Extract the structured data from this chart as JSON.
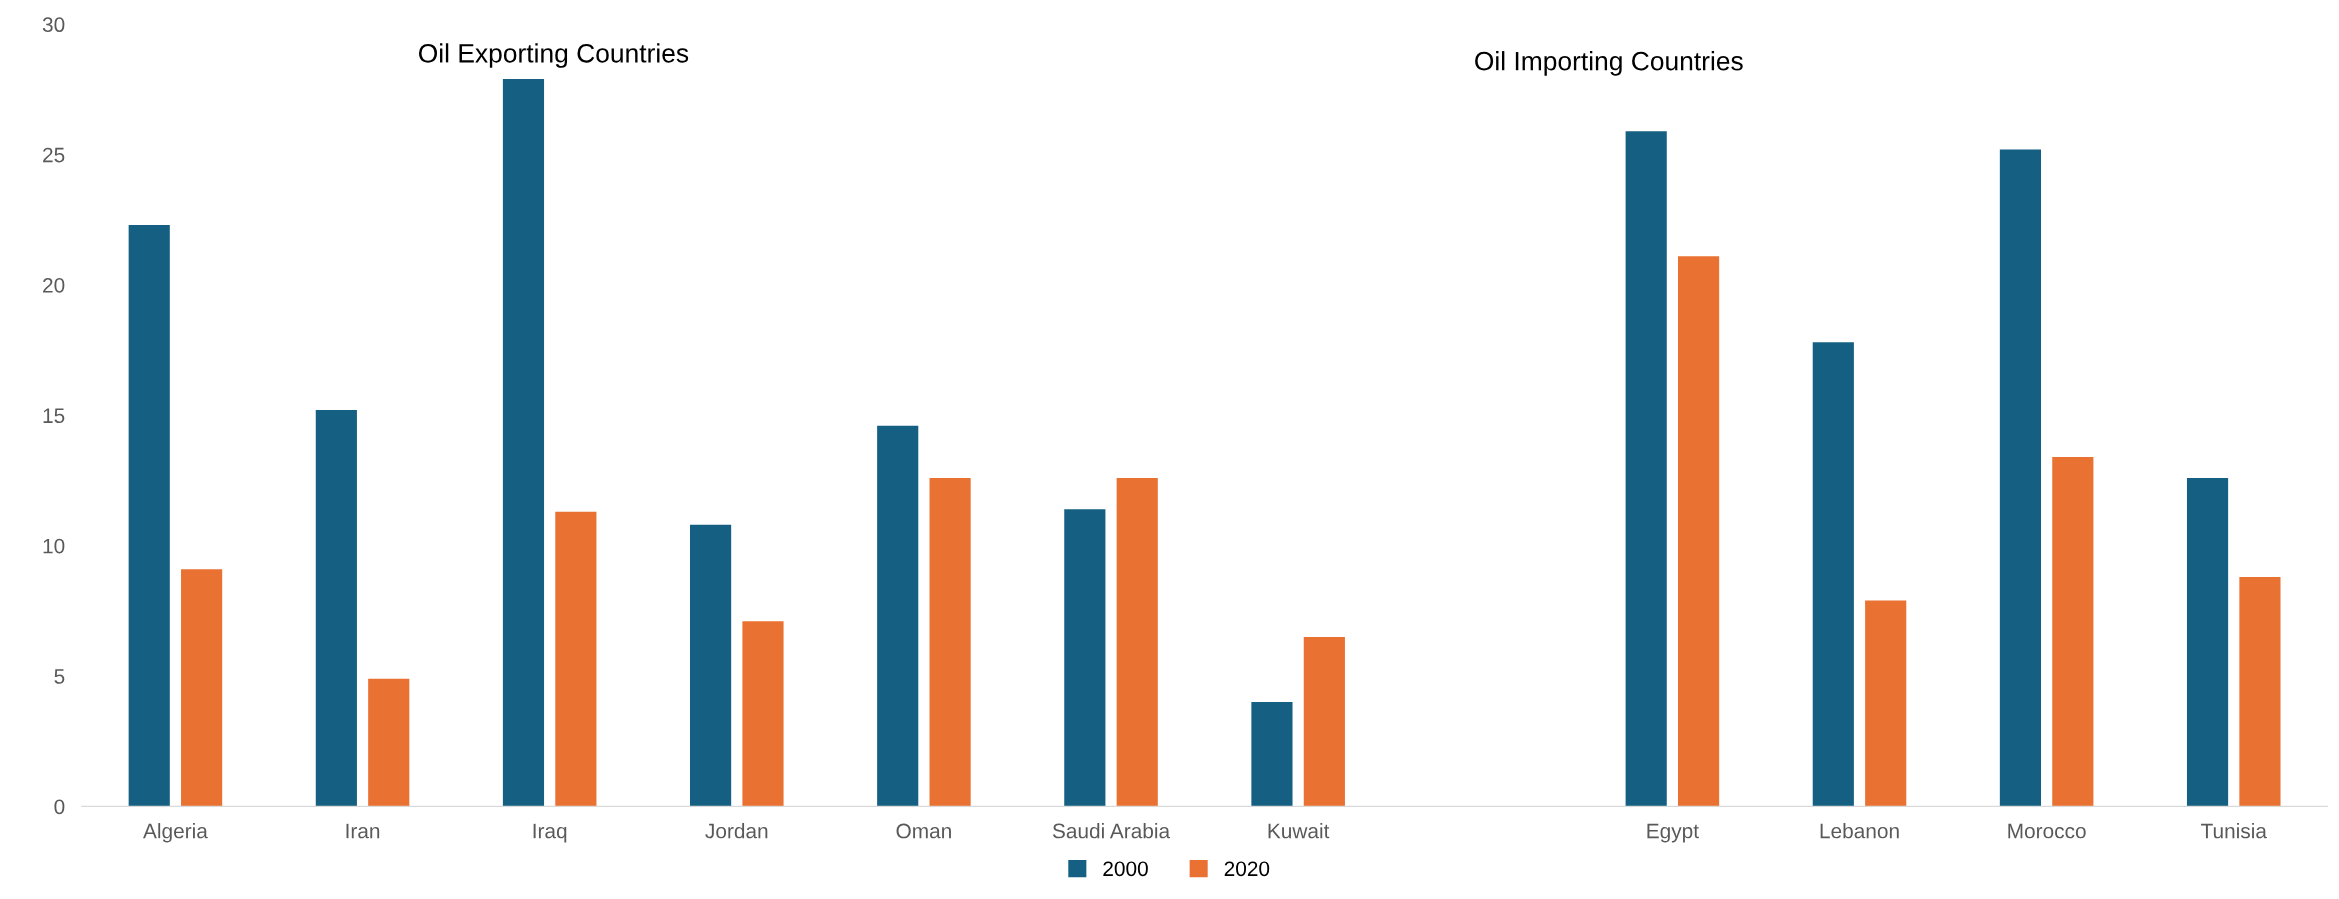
{
  "chart_data": {
    "type": "bar",
    "categories": [
      "Algeria",
      "Iran",
      "Iraq",
      "Jordan",
      "Oman",
      "Saudi Arabia",
      "Kuwait",
      null,
      "Egypt",
      "Lebanon",
      "Morocco",
      "Tunisia"
    ],
    "series": [
      {
        "name": "2000",
        "color": "#156082",
        "values": [
          22.3,
          15.2,
          27.9,
          10.8,
          14.6,
          11.4,
          4.0,
          null,
          25.9,
          17.8,
          25.2,
          12.6
        ]
      },
      {
        "name": "2020",
        "color": "#e97132",
        "values": [
          9.1,
          4.9,
          11.3,
          7.1,
          12.6,
          12.6,
          6.5,
          null,
          21.1,
          7.9,
          13.4,
          8.8
        ]
      }
    ],
    "ylim": [
      0,
      30
    ],
    "yticks": [
      0,
      5,
      10,
      15,
      20,
      25,
      30
    ],
    "annotations": [
      "Oil Exporting Countries",
      "Oil Importing Countries"
    ],
    "grid": false,
    "legend": "bottom"
  }
}
